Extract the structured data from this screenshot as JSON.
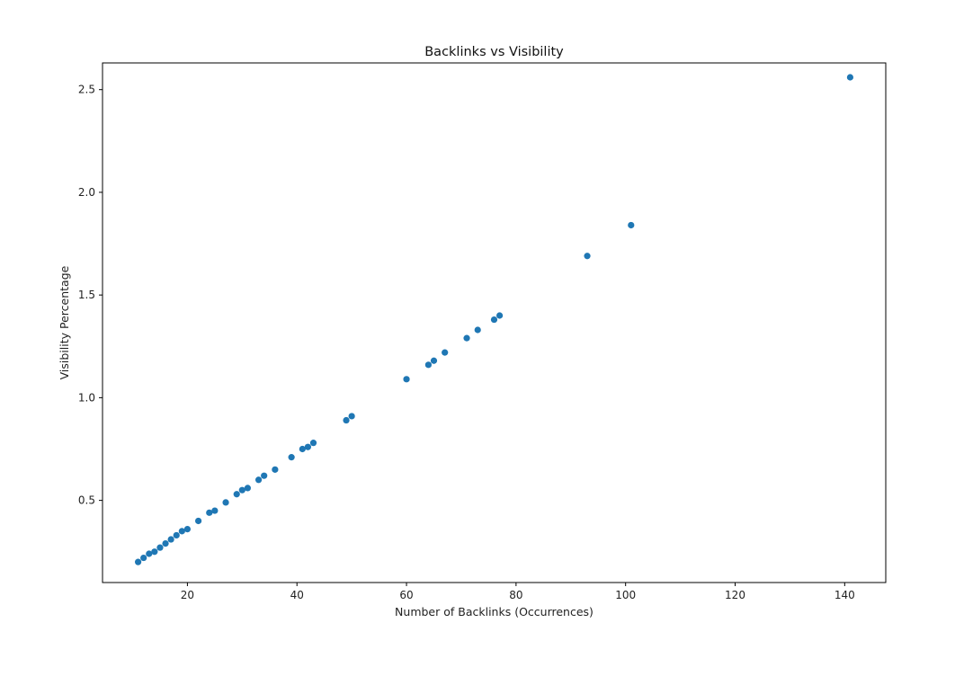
{
  "chart_data": {
    "type": "scatter",
    "title": "Backlinks vs Visibility",
    "xlabel": "Number of Backlinks (Occurrences)",
    "ylabel": "Visibility Percentage",
    "xlim": [
      4.5,
      147.5
    ],
    "ylim": [
      0.1,
      2.63
    ],
    "xticks": [
      20,
      40,
      60,
      80,
      100,
      120,
      140
    ],
    "xtick_labels": [
      "20",
      "40",
      "60",
      "80",
      "100",
      "120",
      "140"
    ],
    "yticks": [
      0.5,
      1.0,
      1.5,
      2.0,
      2.5
    ],
    "ytick_labels": [
      "0.5",
      "1.0",
      "1.5",
      "2.0",
      "2.5"
    ],
    "grid": false,
    "marker_color": "#1f77b4",
    "points": [
      {
        "x": 11,
        "y": 0.2
      },
      {
        "x": 12,
        "y": 0.22
      },
      {
        "x": 13,
        "y": 0.24
      },
      {
        "x": 14,
        "y": 0.25
      },
      {
        "x": 15,
        "y": 0.27
      },
      {
        "x": 16,
        "y": 0.29
      },
      {
        "x": 17,
        "y": 0.31
      },
      {
        "x": 18,
        "y": 0.33
      },
      {
        "x": 19,
        "y": 0.35
      },
      {
        "x": 20,
        "y": 0.36
      },
      {
        "x": 22,
        "y": 0.4
      },
      {
        "x": 24,
        "y": 0.44
      },
      {
        "x": 25,
        "y": 0.45
      },
      {
        "x": 27,
        "y": 0.49
      },
      {
        "x": 29,
        "y": 0.53
      },
      {
        "x": 30,
        "y": 0.55
      },
      {
        "x": 31,
        "y": 0.56
      },
      {
        "x": 33,
        "y": 0.6
      },
      {
        "x": 34,
        "y": 0.62
      },
      {
        "x": 36,
        "y": 0.65
      },
      {
        "x": 39,
        "y": 0.71
      },
      {
        "x": 41,
        "y": 0.75
      },
      {
        "x": 42,
        "y": 0.76
      },
      {
        "x": 43,
        "y": 0.78
      },
      {
        "x": 49,
        "y": 0.89
      },
      {
        "x": 50,
        "y": 0.91
      },
      {
        "x": 60,
        "y": 1.09
      },
      {
        "x": 64,
        "y": 1.16
      },
      {
        "x": 65,
        "y": 1.18
      },
      {
        "x": 67,
        "y": 1.22
      },
      {
        "x": 71,
        "y": 1.29
      },
      {
        "x": 73,
        "y": 1.33
      },
      {
        "x": 76,
        "y": 1.38
      },
      {
        "x": 77,
        "y": 1.4
      },
      {
        "x": 93,
        "y": 1.69
      },
      {
        "x": 101,
        "y": 1.84
      },
      {
        "x": 141,
        "y": 2.56
      }
    ]
  }
}
